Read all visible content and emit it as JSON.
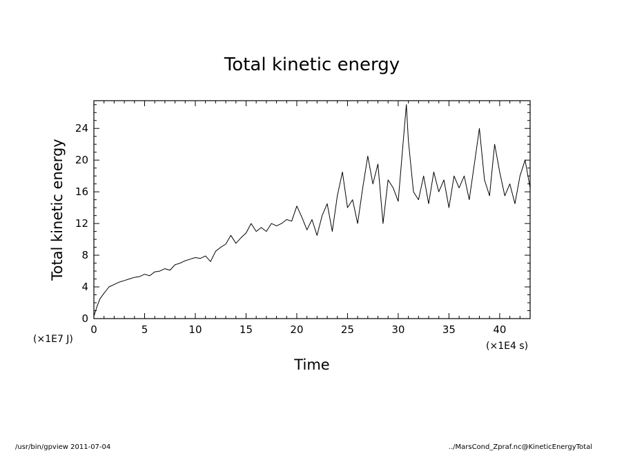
{
  "chart_data": {
    "type": "line",
    "title": "Total kinetic energy",
    "xlabel": "Time",
    "ylabel": "Total kinetic energy",
    "x_unit": "(×1E4 s)",
    "y_unit": "(×1E7 J)",
    "xlim": [
      0,
      43
    ],
    "ylim": [
      0,
      27.5
    ],
    "xticks": [
      0,
      5,
      10,
      15,
      20,
      25,
      30,
      35,
      40
    ],
    "yticks": [
      0,
      4,
      8,
      12,
      16,
      20,
      24
    ],
    "grid": false,
    "legend": "none",
    "line_color": "#000000",
    "series": [
      {
        "x": [
          0,
          0.3,
          0.6,
          1.0,
          1.5,
          2.0,
          2.5,
          3.0,
          3.5,
          4.0,
          4.5,
          5.0,
          5.5,
          6.0,
          6.5,
          7.0,
          7.5,
          8.0,
          8.5,
          9.0,
          9.5,
          10.0,
          10.5,
          11.0,
          11.5,
          12.0,
          12.5,
          13.0,
          13.5,
          14.0,
          14.5,
          15.0,
          15.5,
          16.0,
          16.5,
          17.0,
          17.5,
          18.0,
          18.5,
          19.0,
          19.5,
          20.0,
          20.5,
          21.0,
          21.5,
          22.0,
          22.5,
          23.0,
          23.5,
          24.0,
          24.5,
          25.0,
          25.5,
          26.0,
          26.5,
          27.0,
          27.5,
          28.0,
          28.5,
          29.0,
          29.5,
          30.0,
          30.5,
          30.8,
          31.0,
          31.5,
          32.0,
          32.5,
          33.0,
          33.5,
          34.0,
          34.5,
          35.0,
          35.5,
          36.0,
          36.5,
          37.0,
          37.5,
          38.0,
          38.5,
          39.0,
          39.5,
          40.0,
          40.5,
          41.0,
          41.5,
          42.0,
          42.5,
          43.0
        ],
        "values": [
          0.3,
          1.5,
          2.5,
          3.2,
          4.0,
          4.3,
          4.6,
          4.8,
          5.0,
          5.2,
          5.3,
          5.6,
          5.4,
          5.9,
          6.0,
          6.3,
          6.1,
          6.8,
          7.0,
          7.3,
          7.5,
          7.7,
          7.6,
          7.9,
          7.2,
          8.5,
          9.0,
          9.4,
          10.5,
          9.5,
          10.2,
          10.8,
          12.0,
          11.0,
          11.5,
          11.0,
          12.0,
          11.7,
          12.0,
          12.5,
          12.3,
          14.2,
          12.8,
          11.2,
          12.5,
          10.5,
          13.0,
          14.5,
          11.0,
          15.5,
          18.5,
          14.0,
          15.0,
          12.0,
          16.5,
          20.5,
          17.0,
          19.5,
          12.0,
          17.5,
          16.5,
          14.8,
          22.5,
          27.0,
          22.5,
          16.0,
          15.0,
          18.0,
          14.5,
          18.5,
          16.0,
          17.5,
          14.0,
          18.0,
          16.5,
          18.0,
          15.0,
          19.5,
          24.0,
          17.5,
          15.5,
          22.0,
          18.5,
          15.5,
          17.0,
          14.5,
          18.0,
          20.0,
          16.5
        ]
      }
    ]
  },
  "footer": {
    "left": "/usr/bin/gpview   2011-07-04",
    "right": "../MarsCond_Zpraf.nc@KineticEnergyTotal"
  }
}
